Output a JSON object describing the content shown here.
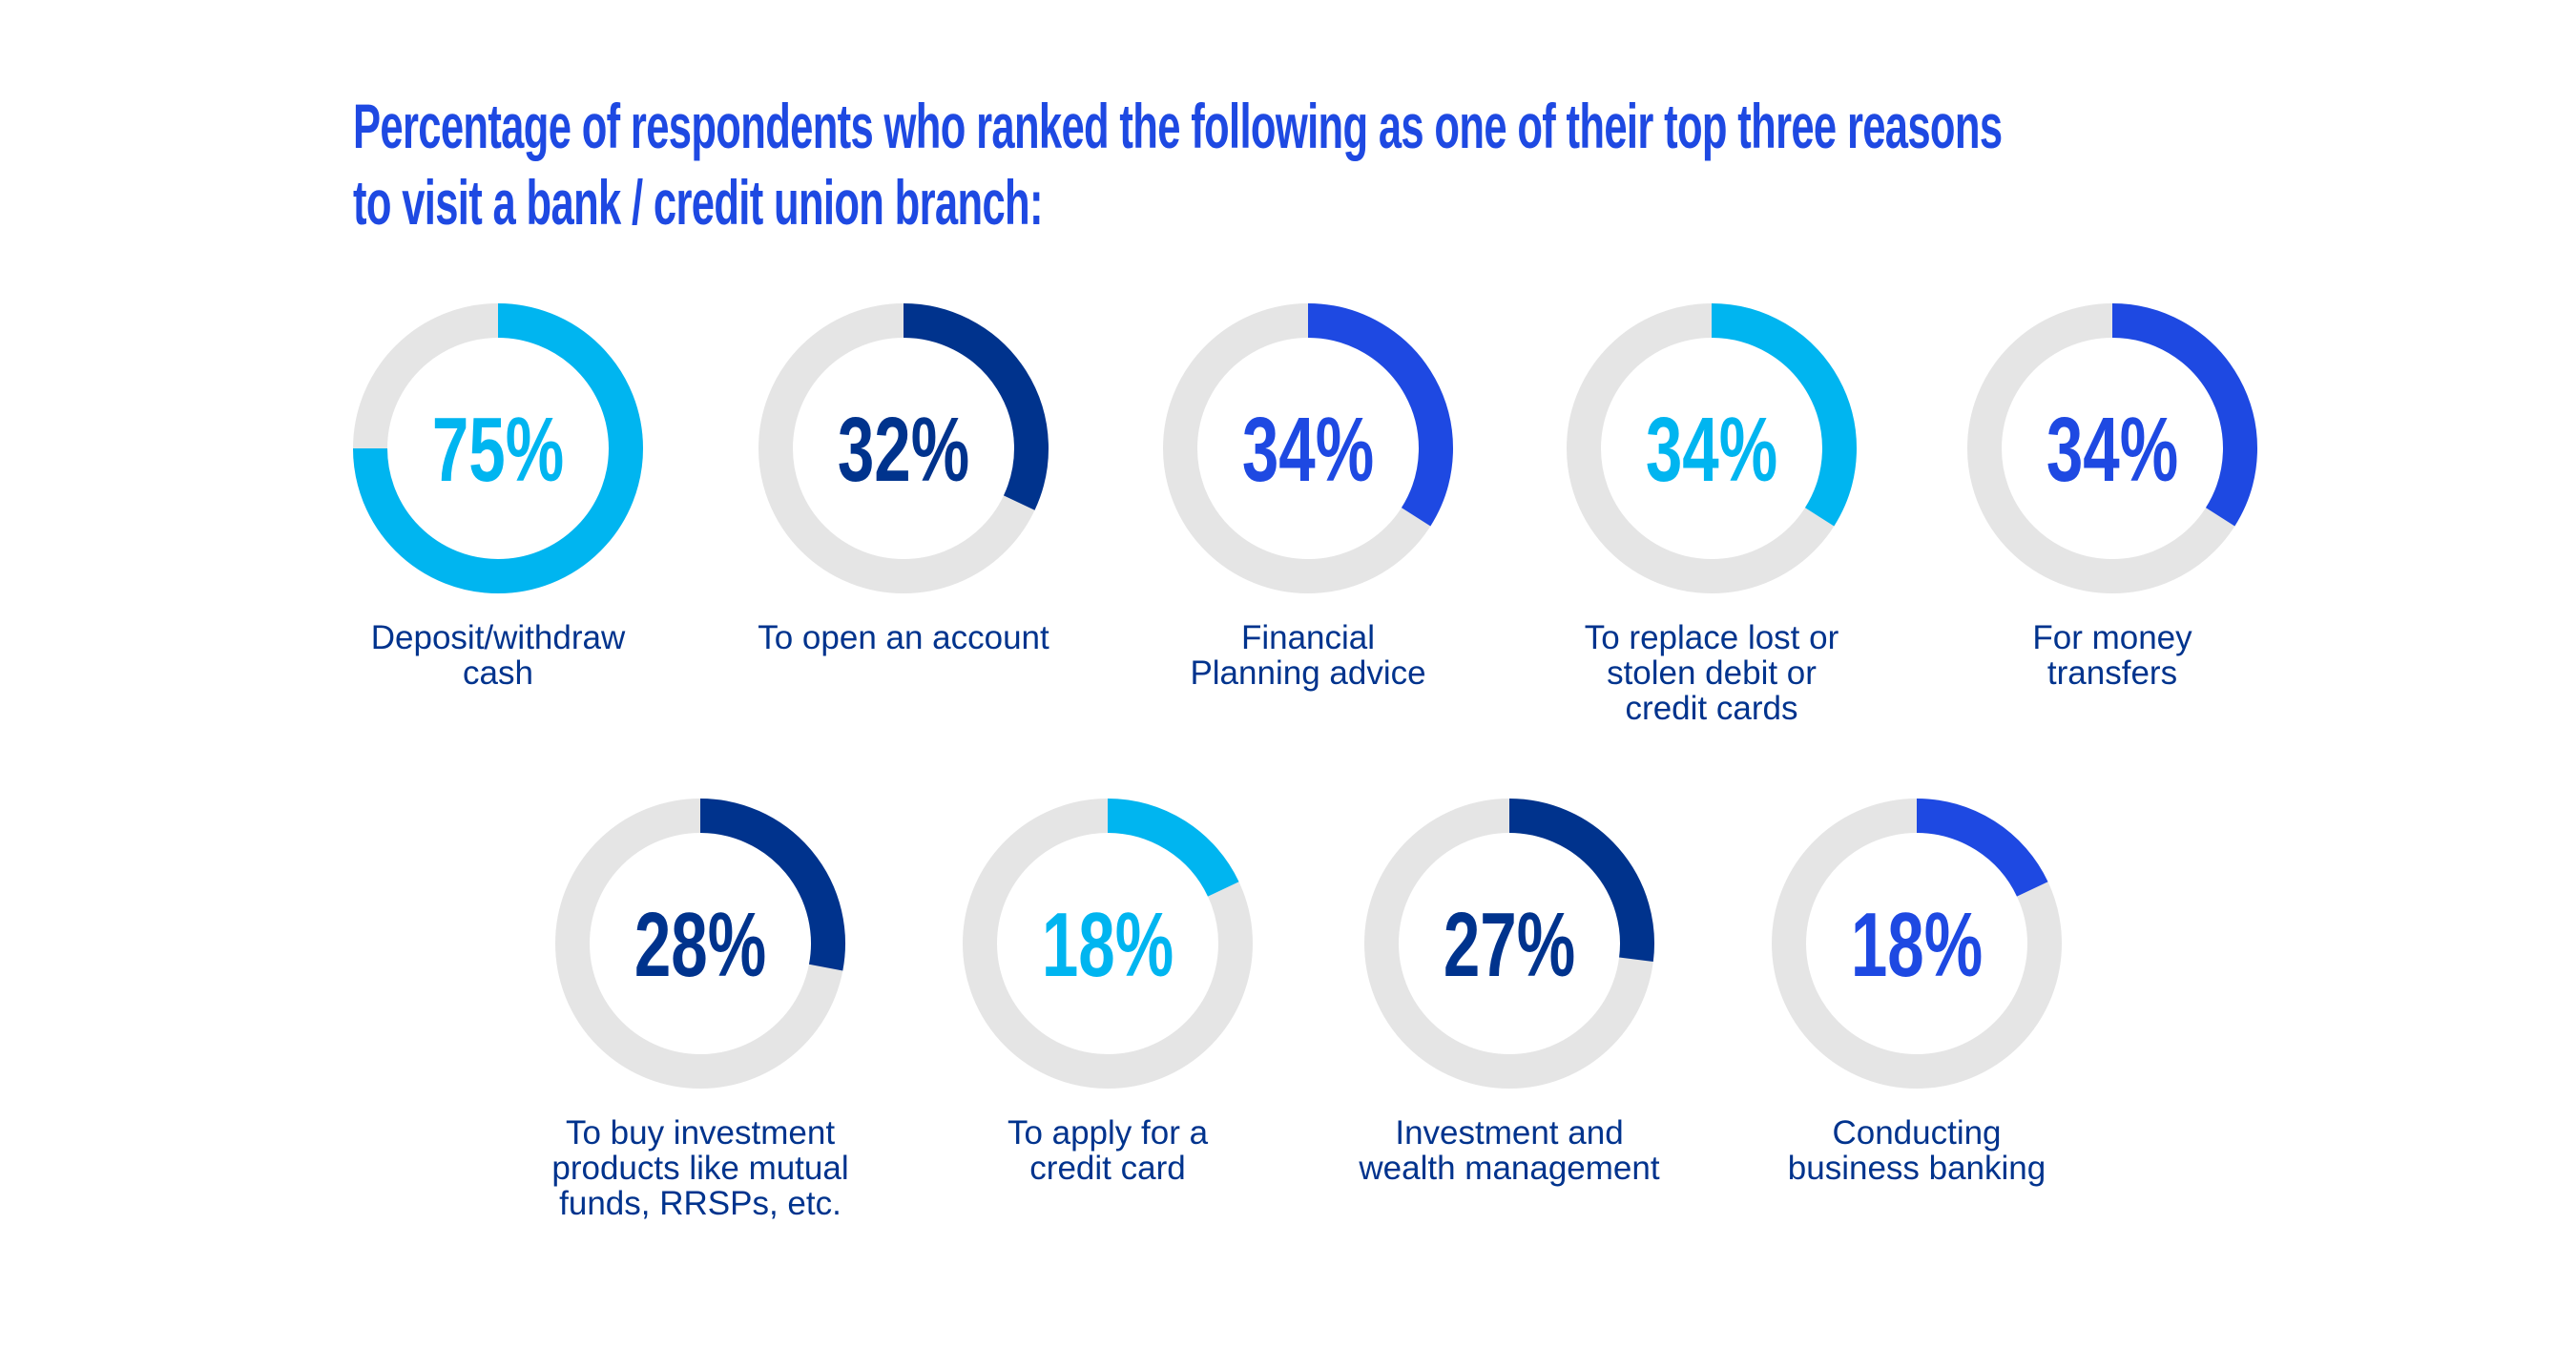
{
  "chart_data": {
    "type": "pie",
    "subtype": "donut",
    "title": [
      "Percentage of respondents who ranked the following as one of their top three reasons",
      "to visit a bank / credit union branch:"
    ],
    "track_color": "#e5e5e5",
    "items": [
      {
        "label": "Deposit/withdraw cash",
        "value": 75,
        "value_label": "75%",
        "color": "#00b5f0"
      },
      {
        "label": "To open an account",
        "value": 32,
        "value_label": "32%",
        "color": "#00338d"
      },
      {
        "label": "Financial Planning advice",
        "value": 34,
        "value_label": "34%",
        "color": "#1e49e2"
      },
      {
        "label": "To replace lost or stolen debit or credit cards",
        "value": 34,
        "value_label": "34%",
        "color": "#00b5f0"
      },
      {
        "label": "For money transfers",
        "value": 34,
        "value_label": "34%",
        "color": "#1e49e2"
      },
      {
        "label": "To buy investment products like mutual funds, RRSPs, etc.",
        "value": 28,
        "value_label": "28%",
        "color": "#00338d"
      },
      {
        "label": "To apply for a credit card",
        "value": 18,
        "value_label": "18%",
        "color": "#00b5f0"
      },
      {
        "label": "Investment and wealth management",
        "value": 27,
        "value_label": "27%",
        "color": "#00338d"
      },
      {
        "label": "Conducting business banking",
        "value": 18,
        "value_label": "18%",
        "color": "#1e49e2"
      }
    ]
  }
}
